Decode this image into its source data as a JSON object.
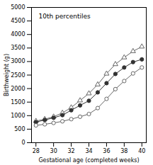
{
  "chart_data": {
    "type": "line",
    "xlabel": "Gestational age (completed weeks)",
    "ylabel": "Birthweight (g)",
    "x": [
      28,
      29,
      30,
      31,
      32,
      33,
      34,
      35,
      36,
      37,
      38,
      39,
      40
    ],
    "xlim": [
      27.5,
      40.5
    ],
    "xticks": [
      28,
      30,
      32,
      34,
      36,
      38,
      40
    ],
    "ylim": [
      0,
      5000
    ],
    "yticks": [
      0,
      500,
      1000,
      1500,
      2000,
      2500,
      3000,
      3500,
      4000,
      4500,
      5000
    ],
    "series": [
      {
        "color": "#666666",
        "marker": "open-triangle",
        "values": [
          800,
          870,
          960,
          1100,
          1300,
          1560,
          1820,
          2150,
          2550,
          2900,
          3150,
          3380,
          3550
        ]
      },
      {
        "color": "#333333",
        "marker": "circle",
        "values": [
          760,
          840,
          920,
          1020,
          1200,
          1380,
          1550,
          1860,
          2200,
          2540,
          2780,
          2980,
          3080
        ]
      },
      {
        "color": "#666666",
        "marker": "open-circle",
        "values": [
          640,
          680,
          730,
          790,
          870,
          960,
          1060,
          1280,
          1620,
          1980,
          2280,
          2560,
          2780
        ]
      }
    ],
    "annotations": [
      {
        "text": "10th percentiles",
        "x": 28.3,
        "y": 4750
      }
    ]
  }
}
